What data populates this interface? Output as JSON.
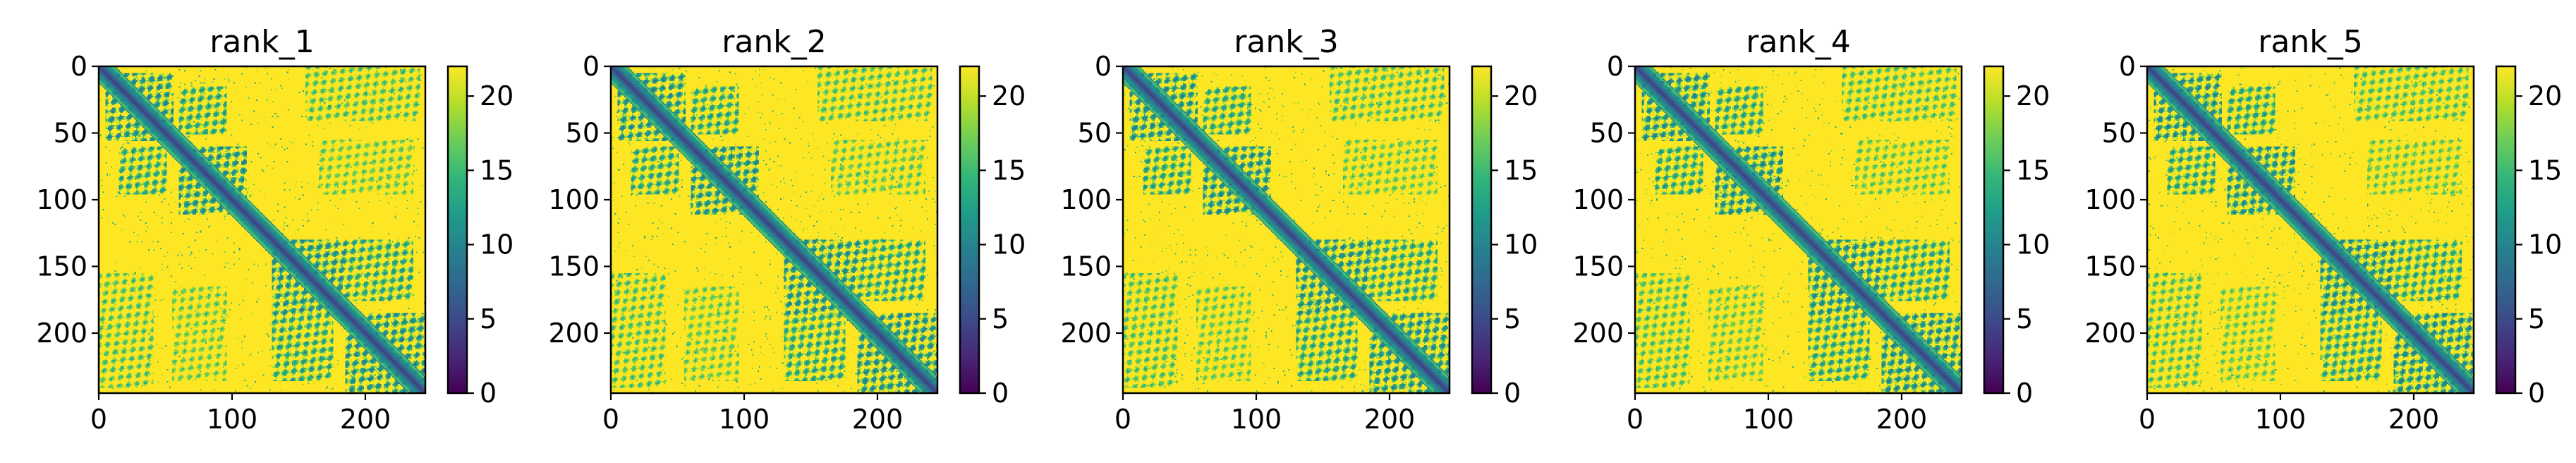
{
  "chart_data": [
    {
      "type": "heatmap",
      "title": "rank_1",
      "matrix_size": 245,
      "xlim": [
        0,
        245
      ],
      "ylim": [
        245,
        0
      ],
      "x_ticks": [
        0,
        100,
        200
      ],
      "y_ticks": [
        0,
        50,
        100,
        150,
        200
      ],
      "colorbar": {
        "range": [
          0,
          22
        ],
        "ticks": [
          0,
          5,
          10,
          15,
          20
        ],
        "colormap": "viridis"
      },
      "diagonal_value": 4
    },
    {
      "type": "heatmap",
      "title": "rank_2",
      "matrix_size": 245,
      "xlim": [
        0,
        245
      ],
      "ylim": [
        245,
        0
      ],
      "x_ticks": [
        0,
        100,
        200
      ],
      "y_ticks": [
        0,
        50,
        100,
        150,
        200
      ],
      "colorbar": {
        "range": [
          0,
          22
        ],
        "ticks": [
          0,
          5,
          10,
          15,
          20
        ],
        "colormap": "viridis"
      },
      "diagonal_value": 4
    },
    {
      "type": "heatmap",
      "title": "rank_3",
      "matrix_size": 245,
      "xlim": [
        0,
        245
      ],
      "ylim": [
        245,
        0
      ],
      "x_ticks": [
        0,
        100,
        200
      ],
      "y_ticks": [
        0,
        50,
        100,
        150,
        200
      ],
      "colorbar": {
        "range": [
          0,
          22
        ],
        "ticks": [
          0,
          5,
          10,
          15,
          20
        ],
        "colormap": "viridis"
      },
      "diagonal_value": 4
    },
    {
      "type": "heatmap",
      "title": "rank_4",
      "matrix_size": 245,
      "xlim": [
        0,
        245
      ],
      "ylim": [
        245,
        0
      ],
      "x_ticks": [
        0,
        100,
        200
      ],
      "y_ticks": [
        0,
        50,
        100,
        150,
        200
      ],
      "colorbar": {
        "range": [
          0,
          22
        ],
        "ticks": [
          0,
          5,
          10,
          15,
          20
        ],
        "colormap": "viridis"
      },
      "diagonal_value": 4
    },
    {
      "type": "heatmap",
      "title": "rank_5",
      "matrix_size": 245,
      "xlim": [
        0,
        245
      ],
      "ylim": [
        245,
        0
      ],
      "x_ticks": [
        0,
        100,
        200
      ],
      "y_ticks": [
        0,
        50,
        100,
        150,
        200
      ],
      "colorbar": {
        "range": [
          0,
          22
        ],
        "ticks": [
          0,
          5,
          10,
          15,
          20
        ],
        "colormap": "viridis"
      },
      "diagonal_value": 4
    }
  ],
  "contact_blocks": [
    {
      "from": [
        5,
        55
      ],
      "to": [
        5,
        55
      ],
      "value": 7
    },
    {
      "from": [
        60,
        110
      ],
      "to": [
        60,
        110
      ],
      "value": 7
    },
    {
      "from": [
        130,
        185
      ],
      "to": [
        130,
        185
      ],
      "value": 7
    },
    {
      "from": [
        185,
        245
      ],
      "to": [
        185,
        245
      ],
      "value": 7
    },
    {
      "from": [
        15,
        50
      ],
      "to": [
        60,
        95
      ],
      "value": 9
    },
    {
      "from": [
        130,
        175
      ],
      "to": [
        185,
        235
      ],
      "value": 9
    },
    {
      "from": [
        0,
        40
      ],
      "to": [
        155,
        240
      ],
      "value": 12
    },
    {
      "from": [
        55,
        95
      ],
      "to": [
        165,
        235
      ],
      "value": 13
    }
  ],
  "colors": {
    "background": "#ffffff",
    "axis": "#000000"
  }
}
